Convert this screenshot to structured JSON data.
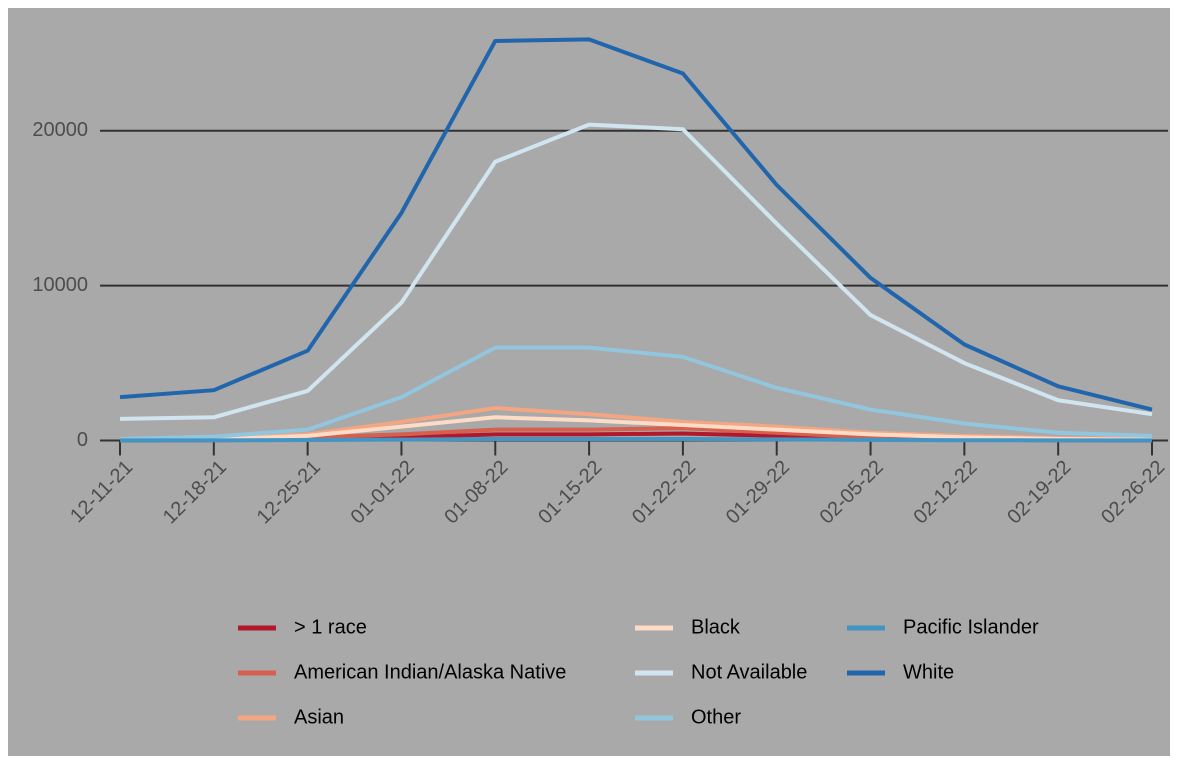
{
  "chart_data": {
    "type": "line",
    "categories": [
      "12-11-21",
      "12-18-21",
      "12-25-21",
      "01-01-22",
      "01-08-22",
      "01-15-22",
      "01-22-22",
      "01-29-22",
      "02-05-22",
      "02-12-22",
      "02-19-22",
      "02-26-22"
    ],
    "series": [
      {
        "name": "> 1 race",
        "color": "#b2182b",
        "values": [
          10,
          20,
          80,
          200,
          400,
          400,
          450,
          300,
          100,
          50,
          20,
          10
        ]
      },
      {
        "name": "American Indian/Alaska Native",
        "color": "#d6604d",
        "values": [
          20,
          50,
          200,
          400,
          700,
          700,
          800,
          500,
          200,
          100,
          50,
          30
        ]
      },
      {
        "name": "Asian",
        "color": "#f4a582",
        "values": [
          50,
          100,
          400,
          1200,
          2100,
          1700,
          1200,
          900,
          500,
          300,
          150,
          100
        ]
      },
      {
        "name": "Black",
        "color": "#fddbc7",
        "values": [
          50,
          80,
          300,
          900,
          1500,
          1300,
          1000,
          700,
          400,
          200,
          100,
          50
        ]
      },
      {
        "name": "Not Available",
        "color": "#d1e5f0",
        "values": [
          1400,
          1500,
          3200,
          8900,
          18000,
          20400,
          20100,
          14000,
          8100,
          5000,
          2600,
          1700
        ]
      },
      {
        "name": "Other",
        "color": "#92c5de",
        "values": [
          100,
          250,
          700,
          2800,
          6000,
          6000,
          5400,
          3400,
          2000,
          1100,
          500,
          300
        ]
      },
      {
        "name": "Pacific Islander",
        "color": "#4393c3",
        "values": [
          5,
          10,
          30,
          60,
          100,
          100,
          100,
          70,
          40,
          20,
          10,
          5
        ]
      },
      {
        "name": "White",
        "color": "#2166ac",
        "values": [
          2800,
          3250,
          5800,
          14700,
          25800,
          25900,
          23700,
          16500,
          10500,
          6200,
          3500,
          2000
        ]
      }
    ],
    "ylim": [
      -1000,
      27800
    ],
    "yticks": [
      0,
      10000,
      20000
    ],
    "grid": true,
    "legend": "bottom"
  }
}
